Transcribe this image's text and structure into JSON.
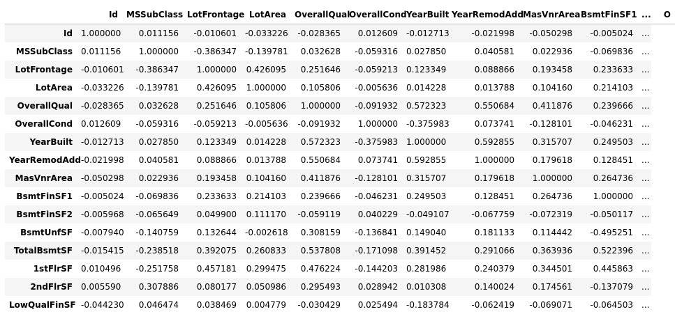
{
  "table": {
    "columns": [
      "Id",
      "MSSubClass",
      "LotFrontage",
      "LotArea",
      "OverallQual",
      "OverallCond",
      "YearBuilt",
      "YearRemodAdd",
      "MasVnrArea",
      "BsmtFinSF1",
      "...",
      "O"
    ],
    "rows": [
      {
        "label": "Id",
        "values": [
          "1.000000",
          "0.011156",
          "-0.010601",
          "-0.033226",
          "-0.028365",
          "0.012609",
          "-0.012713",
          "-0.021998",
          "-0.050298",
          "-0.005024",
          "..."
        ]
      },
      {
        "label": "MSSubClass",
        "values": [
          "0.011156",
          "1.000000",
          "-0.386347",
          "-0.139781",
          "0.032628",
          "-0.059316",
          "0.027850",
          "0.040581",
          "0.022936",
          "-0.069836",
          "..."
        ]
      },
      {
        "label": "LotFrontage",
        "values": [
          "-0.010601",
          "-0.386347",
          "1.000000",
          "0.426095",
          "0.251646",
          "-0.059213",
          "0.123349",
          "0.088866",
          "0.193458",
          "0.233633",
          "..."
        ]
      },
      {
        "label": "LotArea",
        "values": [
          "-0.033226",
          "-0.139781",
          "0.426095",
          "1.000000",
          "0.105806",
          "-0.005636",
          "0.014228",
          "0.013788",
          "0.104160",
          "0.214103",
          "..."
        ]
      },
      {
        "label": "OverallQual",
        "values": [
          "-0.028365",
          "0.032628",
          "0.251646",
          "0.105806",
          "1.000000",
          "-0.091932",
          "0.572323",
          "0.550684",
          "0.411876",
          "0.239666",
          "..."
        ]
      },
      {
        "label": "OverallCond",
        "values": [
          "0.012609",
          "-0.059316",
          "-0.059213",
          "-0.005636",
          "-0.091932",
          "1.000000",
          "-0.375983",
          "0.073741",
          "-0.128101",
          "-0.046231",
          "..."
        ]
      },
      {
        "label": "YearBuilt",
        "values": [
          "-0.012713",
          "0.027850",
          "0.123349",
          "0.014228",
          "0.572323",
          "-0.375983",
          "1.000000",
          "0.592855",
          "0.315707",
          "0.249503",
          "..."
        ]
      },
      {
        "label": "YearRemodAdd",
        "values": [
          "-0.021998",
          "0.040581",
          "0.088866",
          "0.013788",
          "0.550684",
          "0.073741",
          "0.592855",
          "1.000000",
          "0.179618",
          "0.128451",
          "..."
        ]
      },
      {
        "label": "MasVnrArea",
        "values": [
          "-0.050298",
          "0.022936",
          "0.193458",
          "0.104160",
          "0.411876",
          "-0.128101",
          "0.315707",
          "0.179618",
          "1.000000",
          "0.264736",
          "..."
        ]
      },
      {
        "label": "BsmtFinSF1",
        "values": [
          "-0.005024",
          "-0.069836",
          "0.233633",
          "0.214103",
          "0.239666",
          "-0.046231",
          "0.249503",
          "0.128451",
          "0.264736",
          "1.000000",
          "..."
        ]
      },
      {
        "label": "BsmtFinSF2",
        "values": [
          "-0.005968",
          "-0.065649",
          "0.049900",
          "0.111170",
          "-0.059119",
          "0.040229",
          "-0.049107",
          "-0.067759",
          "-0.072319",
          "-0.050117",
          "..."
        ]
      },
      {
        "label": "BsmtUnfSF",
        "values": [
          "-0.007940",
          "-0.140759",
          "0.132644",
          "-0.002618",
          "0.308159",
          "-0.136841",
          "0.149040",
          "0.181133",
          "0.114442",
          "-0.495251",
          "..."
        ]
      },
      {
        "label": "TotalBsmtSF",
        "values": [
          "-0.015415",
          "-0.238518",
          "0.392075",
          "0.260833",
          "0.537808",
          "-0.171098",
          "0.391452",
          "0.291066",
          "0.363936",
          "0.522396",
          "..."
        ]
      },
      {
        "label": "1stFlrSF",
        "values": [
          "0.010496",
          "-0.251758",
          "0.457181",
          "0.299475",
          "0.476224",
          "-0.144203",
          "0.281986",
          "0.240379",
          "0.344501",
          "0.445863",
          "..."
        ]
      },
      {
        "label": "2ndFlrSF",
        "values": [
          "0.005590",
          "0.307886",
          "0.080177",
          "0.050986",
          "0.295493",
          "0.028942",
          "0.010308",
          "0.140024",
          "0.174561",
          "-0.137079",
          "..."
        ]
      },
      {
        "label": "LowQualFinSF",
        "values": [
          "-0.044230",
          "0.046474",
          "0.038469",
          "0.004779",
          "-0.030429",
          "0.025494",
          "-0.183784",
          "-0.062419",
          "-0.069071",
          "-0.064503",
          "..."
        ]
      }
    ]
  }
}
